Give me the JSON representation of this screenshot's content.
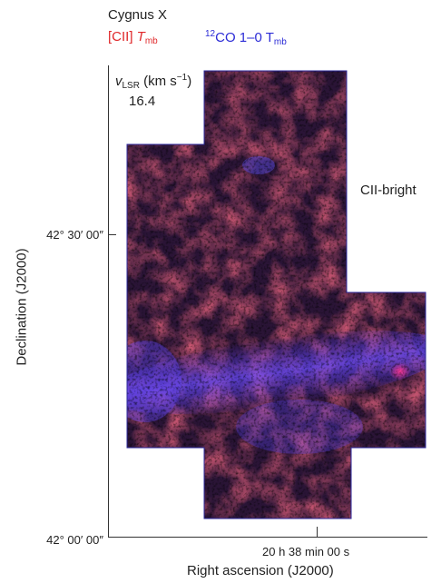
{
  "chart_data": {
    "type": "heatmap",
    "title": "Cygnus X",
    "legend": [
      {
        "label_main": "[CII] ",
        "label_italic": "T",
        "label_sub": "mb",
        "color": "#e0282a"
      },
      {
        "label_sup": "12",
        "label_main": "CO 1–0 T",
        "label_sub": "mb",
        "color": "#2b2bd6"
      }
    ],
    "velocity_label": {
      "symbol": "v",
      "sub": "LSR",
      "unit": " (km s",
      "unit_sup": "−1",
      "unit_close": ")"
    },
    "velocity_value": "16.4",
    "region_label": "CII-bright",
    "xlabel": "Right ascension (J2000)",
    "ylabel": "Declination (J2000)",
    "x_ticks": [
      "20 h 38 min 00 s"
    ],
    "y_ticks": [
      "42° 30′ 00″",
      "42° 00′ 00″"
    ],
    "colors": {
      "cii": "#c4272d",
      "co": "#3a3ad8",
      "base": "#1c0f2a"
    }
  }
}
